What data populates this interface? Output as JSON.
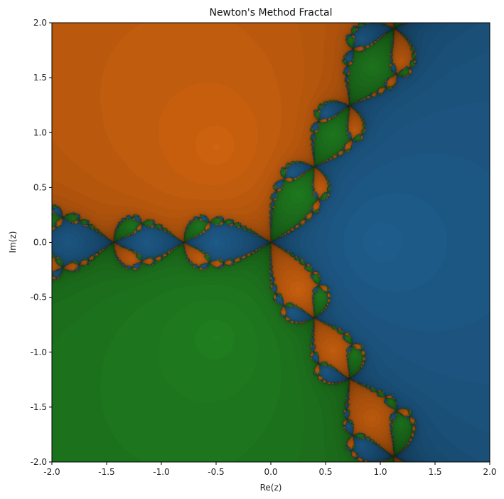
{
  "chart_data": {
    "type": "heatmap",
    "title": "Newton's Method Fractal",
    "xlabel": "Re(z)",
    "ylabel": "Im(z)",
    "xlim": [
      -2.0,
      2.0
    ],
    "ylim": [
      -2.0,
      2.0
    ],
    "x_ticks": [
      "-2.0",
      "-1.5",
      "-1.0",
      "-0.5",
      "0.0",
      "0.5",
      "1.0",
      "1.5",
      "2.0"
    ],
    "y_ticks": [
      "-2.0",
      "-1.5",
      "-1.0",
      "-0.5",
      "0.0",
      "0.5",
      "1.0",
      "1.5",
      "2.0"
    ],
    "grid": false,
    "roots": [
      {
        "re": 1.0,
        "im": 0.0,
        "color": "#1f5f8f"
      },
      {
        "re": -0.5,
        "im": 0.866,
        "color": "#d2640f"
      },
      {
        "re": -0.5,
        "im": -0.866,
        "color": "#208020"
      }
    ]
  }
}
